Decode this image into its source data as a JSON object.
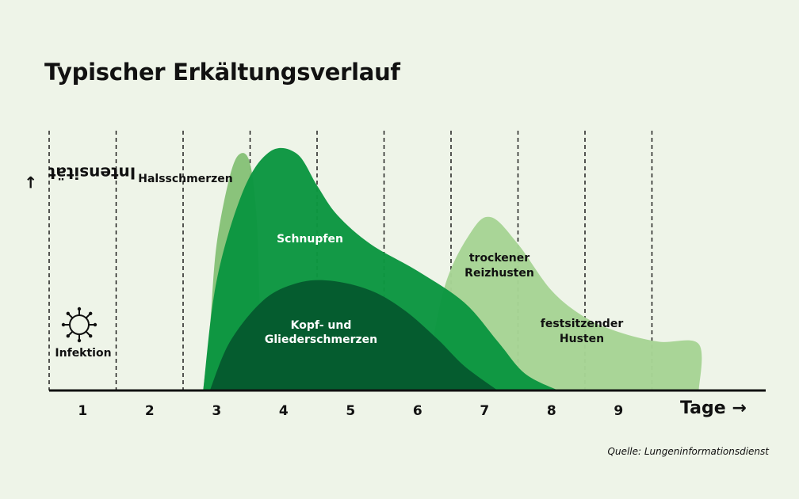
{
  "chart_data": {
    "type": "area",
    "title": "Typischer Erkältungsverlauf",
    "ylabel": "Intensität",
    "xlabel": "Tage",
    "days": [
      "1",
      "2",
      "3",
      "4",
      "5",
      "6",
      "7",
      "8",
      "9"
    ],
    "xlim": [
      0.5,
      10.2
    ],
    "ylim": [
      0,
      1
    ],
    "grid": "vertical dashed lines between days",
    "series": [
      {
        "name": "Halsschmerzen",
        "color": "#86c177",
        "points": [
          [
            2.8,
            0
          ],
          [
            2.9,
            0.26
          ],
          [
            3.0,
            0.6
          ],
          [
            3.2,
            0.88
          ],
          [
            3.35,
            0.97
          ],
          [
            3.5,
            0.93
          ],
          [
            3.6,
            0.7
          ],
          [
            3.65,
            0.3
          ],
          [
            3.7,
            0
          ]
        ]
      },
      {
        "name": "trockener Reizhusten",
        "color": "#a6d494",
        "points": [
          [
            6.1,
            0
          ],
          [
            6.4,
            0.42
          ],
          [
            6.8,
            0.65
          ],
          [
            7.1,
            0.71
          ],
          [
            7.5,
            0.6
          ],
          [
            8.0,
            0.41
          ],
          [
            8.5,
            0.3
          ],
          [
            9.0,
            0.24
          ],
          [
            9.6,
            0.2
          ],
          [
            10.2,
            0.19
          ],
          [
            10.2,
            0
          ]
        ]
      },
      {
        "name": "Schnupfen",
        "color": "#0b9640",
        "points": [
          [
            2.8,
            0
          ],
          [
            3.0,
            0.45
          ],
          [
            3.4,
            0.82
          ],
          [
            3.8,
            0.98
          ],
          [
            4.2,
            0.97
          ],
          [
            4.5,
            0.84
          ],
          [
            4.8,
            0.72
          ],
          [
            5.3,
            0.6
          ],
          [
            6.0,
            0.49
          ],
          [
            6.7,
            0.36
          ],
          [
            7.2,
            0.2
          ],
          [
            7.6,
            0.07
          ],
          [
            8.1,
            0
          ]
        ]
      },
      {
        "name": "Kopf- und Gliederschmerzen",
        "color": "#055a2e",
        "points": [
          [
            2.9,
            0
          ],
          [
            3.2,
            0.2
          ],
          [
            3.7,
            0.37
          ],
          [
            4.2,
            0.44
          ],
          [
            4.7,
            0.45
          ],
          [
            5.3,
            0.41
          ],
          [
            5.8,
            0.33
          ],
          [
            6.3,
            0.21
          ],
          [
            6.7,
            0.1
          ],
          [
            7.2,
            0
          ]
        ]
      }
    ],
    "labels": {
      "infektion": "Infektion",
      "halsschmerzen": "Halsschmerzen",
      "schnupfen": "Schnupfen",
      "kopf_line1": "Kopf- und",
      "kopf_line2": "Gliederschmerzen",
      "trocken_line1": "trockener",
      "trocken_line2": "Reizhusten",
      "fest_line1": "festsitzender",
      "fest_line2": "Husten"
    }
  },
  "source": "Quelle: Lungeninformationsdienst",
  "icon": "virus-icon"
}
